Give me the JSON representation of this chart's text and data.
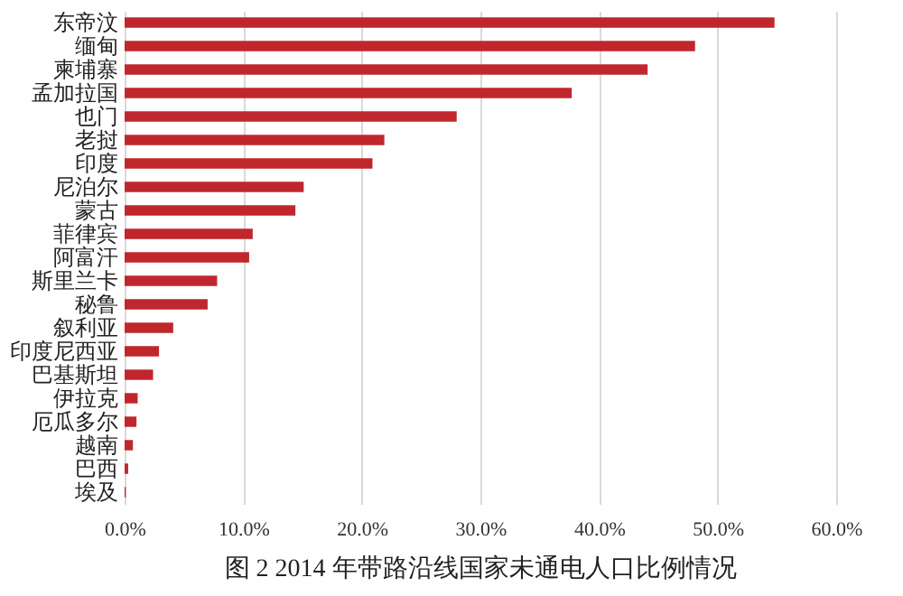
{
  "chart_data": {
    "type": "bar",
    "orientation": "horizontal",
    "title": "图 2 2014 年带路沿线国家未通电人口比例情况",
    "categories": [
      "东帝汶",
      "缅甸",
      "柬埔寨",
      "孟加拉国",
      "也门",
      "老挝",
      "印度",
      "尼泊尔",
      "蒙古",
      "菲律宾",
      "阿富汗",
      "斯里兰卡",
      "秘鲁",
      "叙利亚",
      "印度尼西亚",
      "巴基斯坦",
      "伊拉克",
      "厄瓜多尔",
      "越南",
      "巴西",
      "埃及"
    ],
    "values": [
      54.8,
      48.1,
      44.1,
      37.7,
      28.0,
      21.9,
      20.9,
      15.1,
      14.4,
      10.8,
      10.5,
      7.8,
      7.0,
      4.1,
      2.9,
      2.4,
      1.1,
      1.0,
      0.7,
      0.3,
      0.1
    ],
    "color": "#c0272d",
    "xlim": [
      0,
      60
    ],
    "xticks": [
      {
        "value": 0,
        "label": "0.0%"
      },
      {
        "value": 10,
        "label": "10.0%"
      },
      {
        "value": 20,
        "label": "20.0%"
      },
      {
        "value": 30,
        "label": "30.0%"
      },
      {
        "value": 40,
        "label": "40.0%"
      },
      {
        "value": 50,
        "label": "50.0%"
      },
      {
        "value": 60,
        "label": "60.0%"
      }
    ],
    "grid": "x"
  }
}
